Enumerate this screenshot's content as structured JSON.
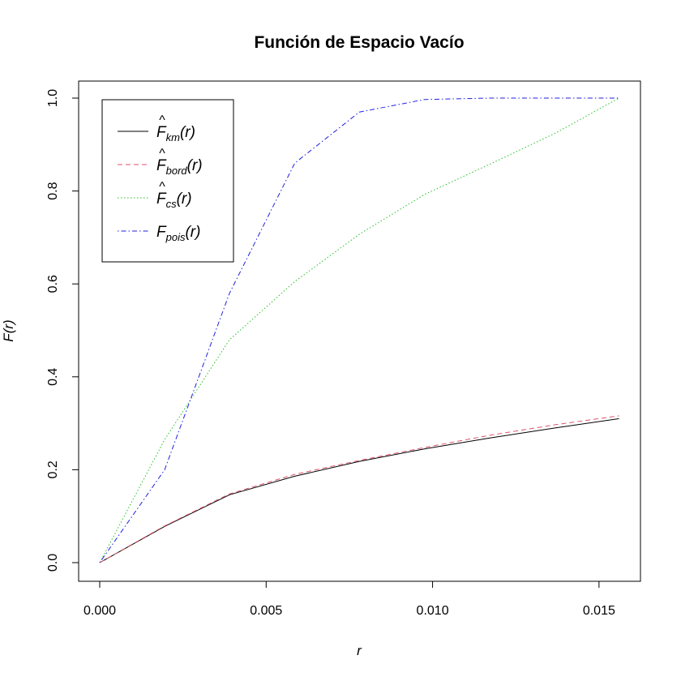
{
  "chart_data": {
    "type": "line",
    "title": "Función de Espacio Vacío",
    "xlabel": "r",
    "ylabel": "F(r)",
    "xlim": [
      0,
      0.0156
    ],
    "ylim": [
      0,
      1
    ],
    "grid": false,
    "legend_position": "top-left",
    "x_ticks": [
      "0.000",
      "0.005",
      "0.010",
      "0.015"
    ],
    "y_ticks": [
      "0.0",
      "0.2",
      "0.4",
      "0.6",
      "0.8",
      "1.0"
    ],
    "series": [
      {
        "name": "F̂km(r)",
        "base": "F",
        "hat": true,
        "sub": "km",
        "color": "#000000",
        "dash": "solid",
        "points": [
          [
            0,
            0
          ],
          [
            0.00195,
            0.078
          ],
          [
            0.0039,
            0.146
          ],
          [
            0.00586,
            0.186
          ],
          [
            0.0078,
            0.218
          ],
          [
            0.00977,
            0.245
          ],
          [
            0.0117,
            0.268
          ],
          [
            0.0137,
            0.29
          ],
          [
            0.0156,
            0.31
          ]
        ]
      },
      {
        "name": "F̂bord(r)",
        "base": "F",
        "hat": true,
        "sub": "bord",
        "color": "#df536b",
        "dash": "dashed",
        "points": [
          [
            0,
            0
          ],
          [
            0.00195,
            0.079
          ],
          [
            0.0039,
            0.148
          ],
          [
            0.00586,
            0.19
          ],
          [
            0.0078,
            0.22
          ],
          [
            0.00977,
            0.248
          ],
          [
            0.0117,
            0.274
          ],
          [
            0.0137,
            0.297
          ],
          [
            0.0156,
            0.316
          ]
        ]
      },
      {
        "name": "F̂cs(r)",
        "base": "F",
        "hat": true,
        "sub": "cs",
        "color": "#27c227",
        "dash": "dotted",
        "points": [
          [
            0,
            0
          ],
          [
            0.00195,
            0.265
          ],
          [
            0.0039,
            0.48
          ],
          [
            0.00586,
            0.605
          ],
          [
            0.0078,
            0.707
          ],
          [
            0.00977,
            0.793
          ],
          [
            0.0117,
            0.857
          ],
          [
            0.0137,
            0.925
          ],
          [
            0.0156,
            1.0
          ]
        ]
      },
      {
        "name": "Fpois(r)",
        "base": "F",
        "hat": false,
        "sub": "pois",
        "color": "#2222dd",
        "dash": "dotdash",
        "points": [
          [
            0,
            0
          ],
          [
            0.00195,
            0.2
          ],
          [
            0.0039,
            0.58
          ],
          [
            0.00586,
            0.86
          ],
          [
            0.0078,
            0.97
          ],
          [
            0.00977,
            0.997
          ],
          [
            0.0117,
            1.0
          ],
          [
            0.0137,
            1.0
          ],
          [
            0.0156,
            1.0
          ]
        ]
      }
    ]
  }
}
